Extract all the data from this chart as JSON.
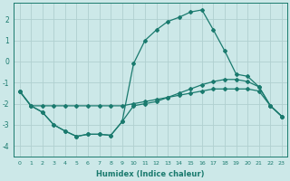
{
  "xlabel": "Humidex (Indice chaleur)",
  "x": [
    0,
    1,
    2,
    3,
    4,
    5,
    6,
    7,
    8,
    9,
    10,
    11,
    12,
    13,
    14,
    15,
    16,
    17,
    18,
    19,
    20,
    21,
    22,
    23
  ],
  "line1": [
    -1.4,
    -2.1,
    -2.1,
    -2.1,
    -2.1,
    -2.1,
    -2.1,
    -2.1,
    -2.1,
    -2.1,
    -2.0,
    -1.9,
    -1.8,
    -1.7,
    -1.6,
    -1.5,
    -1.4,
    -1.3,
    -1.3,
    -1.3,
    -1.3,
    -1.4,
    -2.1,
    -2.6
  ],
  "line2": [
    -1.4,
    -2.1,
    -2.4,
    -3.0,
    -3.3,
    -3.55,
    -3.45,
    -3.45,
    -3.5,
    -2.85,
    -2.1,
    -2.0,
    -1.9,
    -1.7,
    -1.5,
    -1.3,
    -1.1,
    -0.95,
    -0.85,
    -0.85,
    -0.95,
    -1.2,
    -2.1,
    -2.6
  ],
  "line3": [
    -1.4,
    -2.1,
    -2.4,
    -3.0,
    -3.3,
    -3.55,
    -3.45,
    -3.45,
    -3.5,
    -2.85,
    -0.1,
    1.0,
    1.5,
    1.9,
    2.1,
    2.35,
    2.45,
    1.5,
    0.5,
    -0.6,
    -0.7,
    -1.2,
    -2.1,
    -2.6
  ],
  "line_color": "#1a7a6e",
  "bg_color": "#cce8e8",
  "grid_color": "#b0d0d0",
  "ylim": [
    -4.5,
    2.8
  ],
  "yticks": [
    -4,
    -3,
    -2,
    -1,
    0,
    1,
    2
  ],
  "xticks": [
    0,
    1,
    2,
    3,
    4,
    5,
    6,
    7,
    8,
    9,
    10,
    11,
    12,
    13,
    14,
    15,
    16,
    17,
    18,
    19,
    20,
    21,
    22,
    23
  ],
  "marker": "D",
  "markersize": 2.0,
  "linewidth": 0.9
}
